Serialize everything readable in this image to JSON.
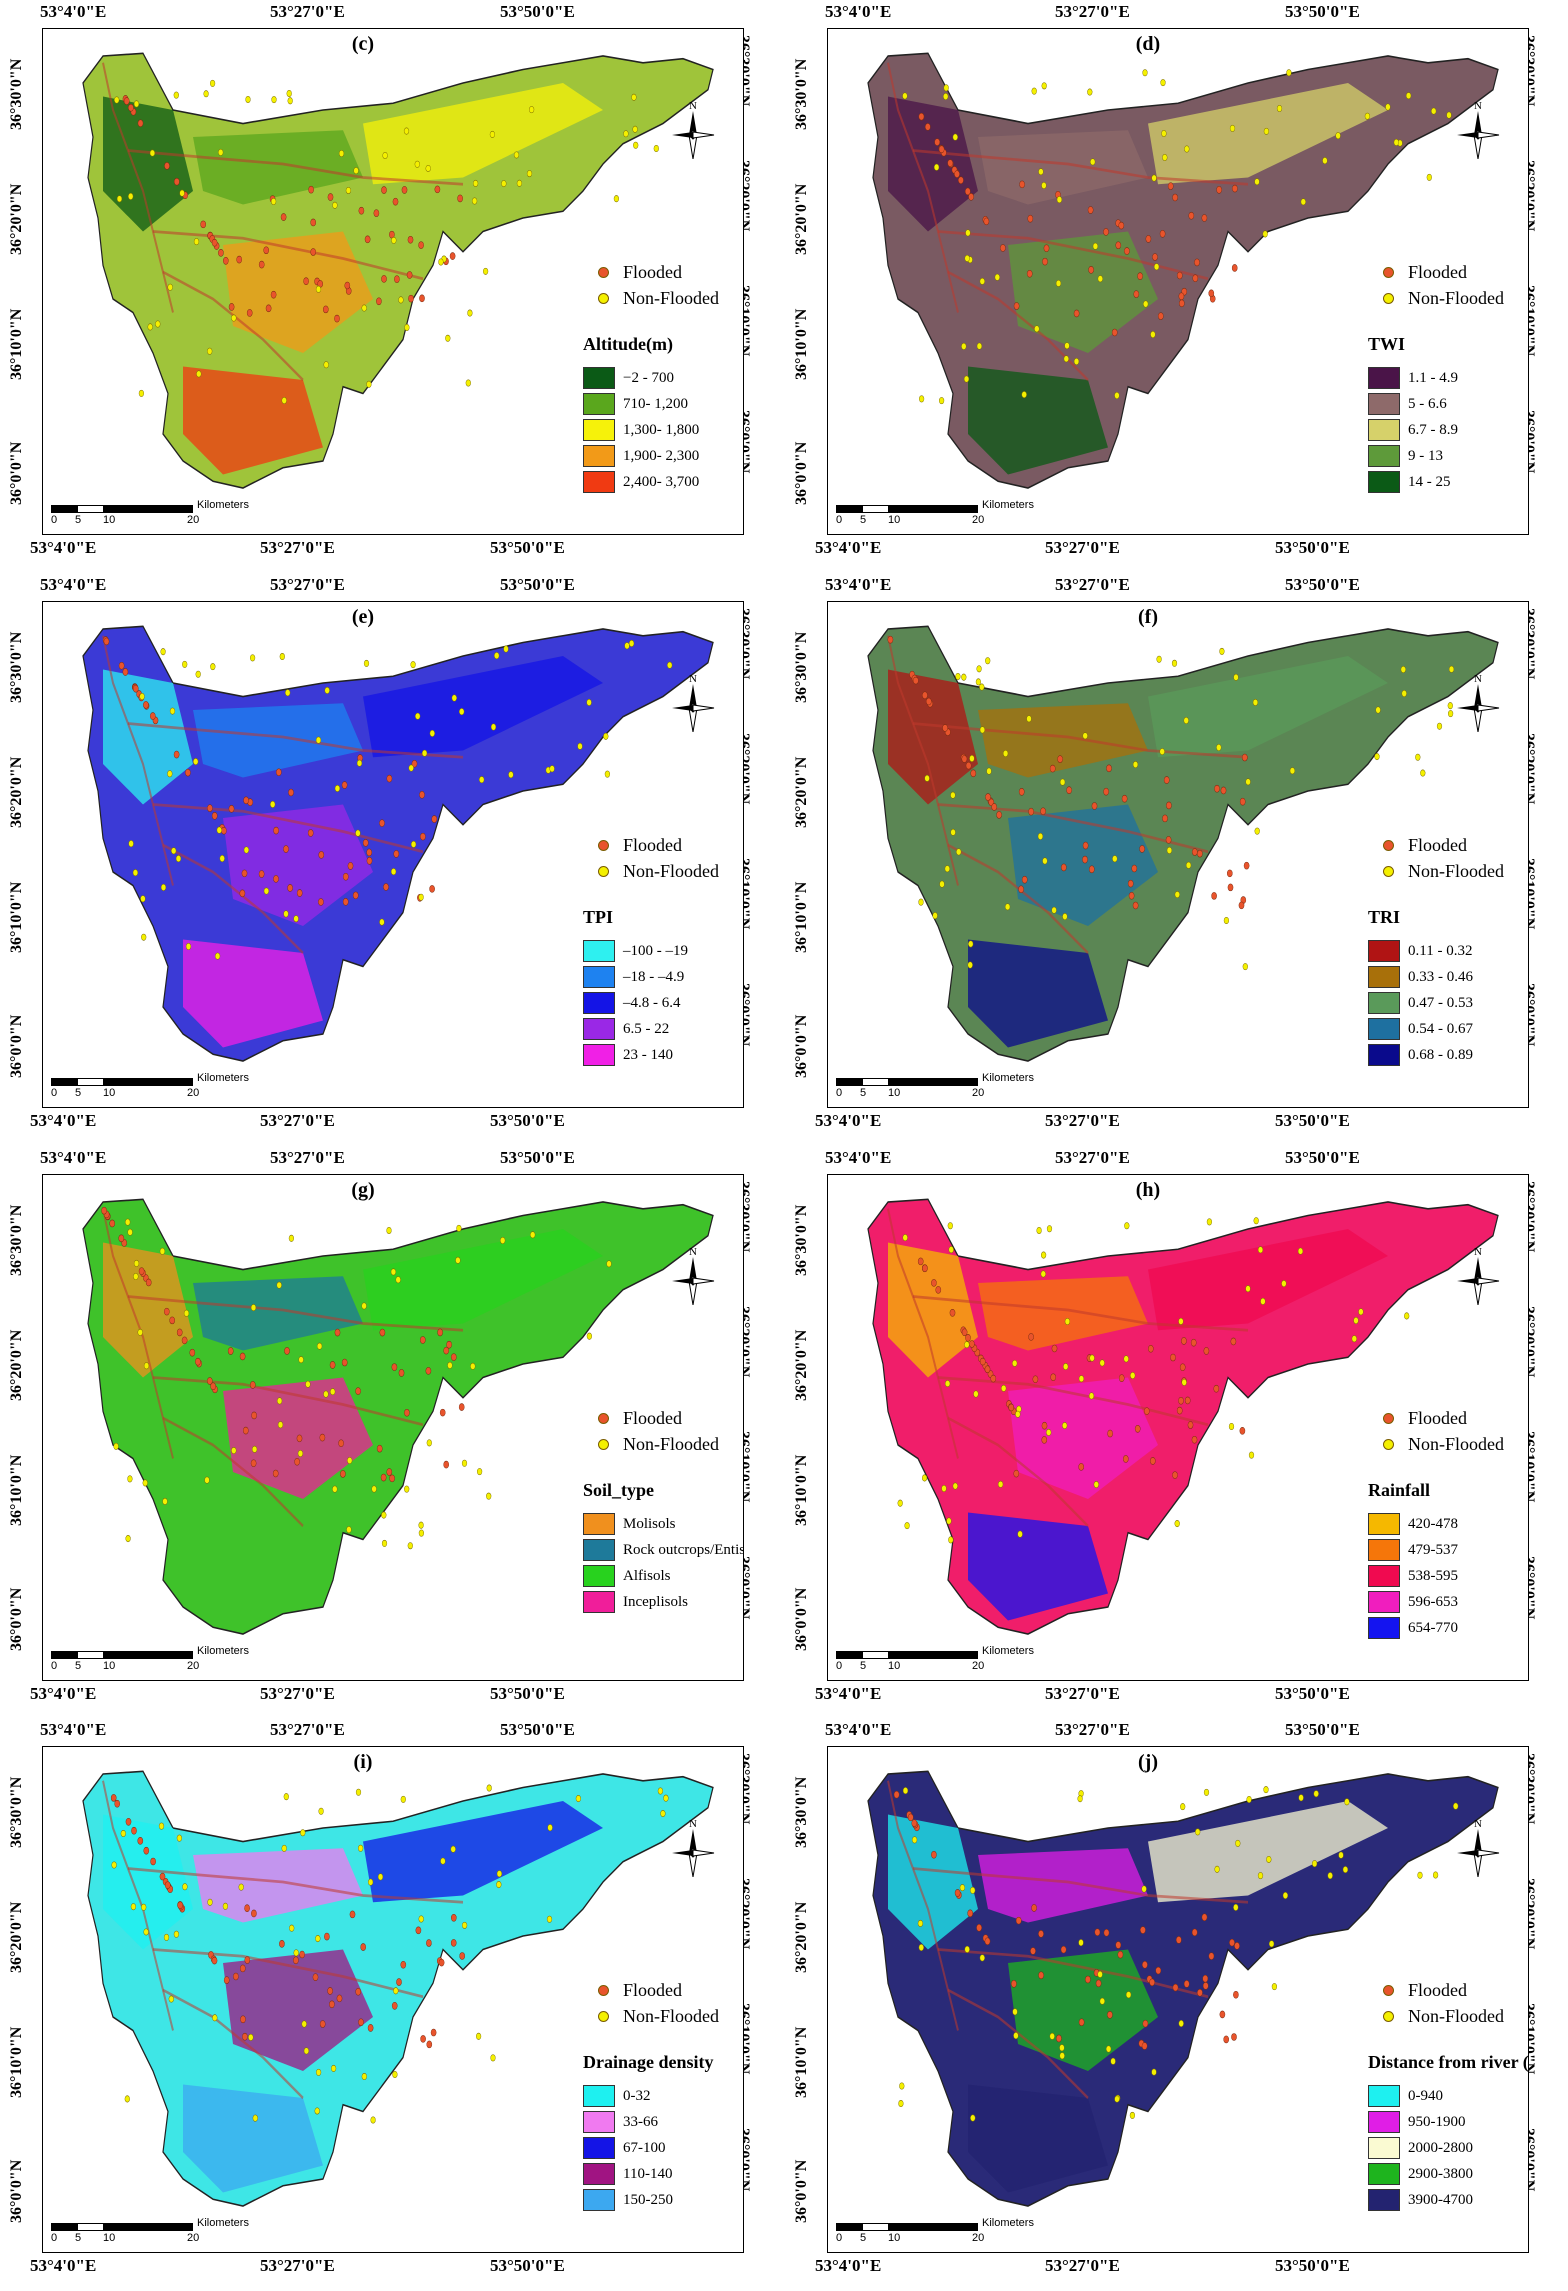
{
  "coords": {
    "top": [
      "53°4'0\"E",
      "53°27'0\"E",
      "53°50'0\"E"
    ],
    "bottom": [
      "53°4'0\"E",
      "53°27'0\"E",
      "53°50'0\"E"
    ],
    "left": [
      "36°30'0\"N",
      "36°20'0\"N",
      "36°10'0\"N",
      "36°0'0\"N"
    ],
    "right": [
      "36°30'0\"N",
      "36°20'0\"N",
      "36°10'0\"N",
      "36°0'0\"N"
    ]
  },
  "scale_bar": {
    "labels": [
      "0",
      "5",
      "10",
      "20"
    ],
    "unit": "Kilometers"
  },
  "north_arrow": "N",
  "points": {
    "flooded": "Flooded",
    "non_flooded": "Non-Flooded",
    "flooded_color": "#e8542c",
    "non_flooded_color": "#f4f000"
  },
  "panels": [
    {
      "label": "(c)",
      "title": "Altitude(m)",
      "base": "#9fc43a",
      "classes": [
        {
          "label": "−2 - 700",
          "color": "#0b5a16"
        },
        {
          "label": "710- 1,200",
          "color": "#5aa71d"
        },
        {
          "label": "1,300- 1,800",
          "color": "#f6f20a"
        },
        {
          "label": "1,900- 2,300",
          "color": "#f29a18"
        },
        {
          "label": "2,400- 3,700",
          "color": "#f03a12"
        }
      ]
    },
    {
      "label": "(d)",
      "title": "TWI",
      "base": "#7a5a62",
      "classes": [
        {
          "label": "1.1 - 4.9",
          "color": "#4a1448"
        },
        {
          "label": "5 - 6.6",
          "color": "#8e6a6a"
        },
        {
          "label": "6.7 - 8.9",
          "color": "#d6d16a"
        },
        {
          "label": "9 - 13",
          "color": "#5e9a3a"
        },
        {
          "label": "14 - 25",
          "color": "#0b5a16"
        }
      ]
    },
    {
      "label": "(e)",
      "title": "TPI",
      "base": "#3b3ad6",
      "classes": [
        {
          "label": "–100 - –19",
          "color": "#2ef0f0"
        },
        {
          "label": "–18 - –4.9",
          "color": "#1e82f0"
        },
        {
          "label": "–4.8 - 6.4",
          "color": "#1414e6"
        },
        {
          "label": "6.5 - 22",
          "color": "#9a28e6"
        },
        {
          "label": "23 - 140",
          "color": "#f020e6"
        }
      ]
    },
    {
      "label": "(f)",
      "title": "TRI",
      "base": "#5b8654",
      "classes": [
        {
          "label": "0.11 - 0.32",
          "color": "#b01414"
        },
        {
          "label": "0.33 - 0.46",
          "color": "#a8700a"
        },
        {
          "label": "0.47 - 0.53",
          "color": "#5a9a5a"
        },
        {
          "label": "0.54 - 0.67",
          "color": "#1e70a0"
        },
        {
          "label": "0.68 - 0.89",
          "color": "#0a0a8c"
        }
      ]
    },
    {
      "label": "(g)",
      "title": "Soil_type",
      "base": "#3fc22a",
      "classes": [
        {
          "label": "Molisols",
          "color": "#f0901e"
        },
        {
          "label": "Rock outcrops/Entisol",
          "color": "#1e7a9a"
        },
        {
          "label": "Alfisols",
          "color": "#28d21e"
        },
        {
          "label": "Inceplisols",
          "color": "#f01e9a"
        }
      ]
    },
    {
      "label": "(h)",
      "title": "Rainfall",
      "base": "#f01e6a",
      "classes": [
        {
          "label": "420-478",
          "color": "#f5b800"
        },
        {
          "label": "479-537",
          "color": "#f5760a"
        },
        {
          "label": "538-595",
          "color": "#f00a50"
        },
        {
          "label": "596-653",
          "color": "#f01ebe"
        },
        {
          "label": "654-770",
          "color": "#1414f0"
        }
      ]
    },
    {
      "label": "(i)",
      "title": "Drainage density",
      "base": "#3ee6e6",
      "classes": [
        {
          "label": "0-32",
          "color": "#1ef0f0"
        },
        {
          "label": "33-66",
          "color": "#f07af0"
        },
        {
          "label": "67-100",
          "color": "#1414e6"
        },
        {
          "label": "110-140",
          "color": "#a01482"
        },
        {
          "label": "150-250",
          "color": "#3ca8f0"
        }
      ]
    },
    {
      "label": "(j)",
      "title": "Distance from river (m)",
      "base": "#2a2a78",
      "classes": [
        {
          "label": "0-940",
          "color": "#1ef0f0"
        },
        {
          "label": "950-1900",
          "color": "#e01ee6"
        },
        {
          "label": "2000-2800",
          "color": "#fafad2"
        },
        {
          "label": "2900-3800",
          "color": "#1eb41e"
        },
        {
          "label": "3900-4700",
          "color": "#232370"
        }
      ]
    }
  ]
}
